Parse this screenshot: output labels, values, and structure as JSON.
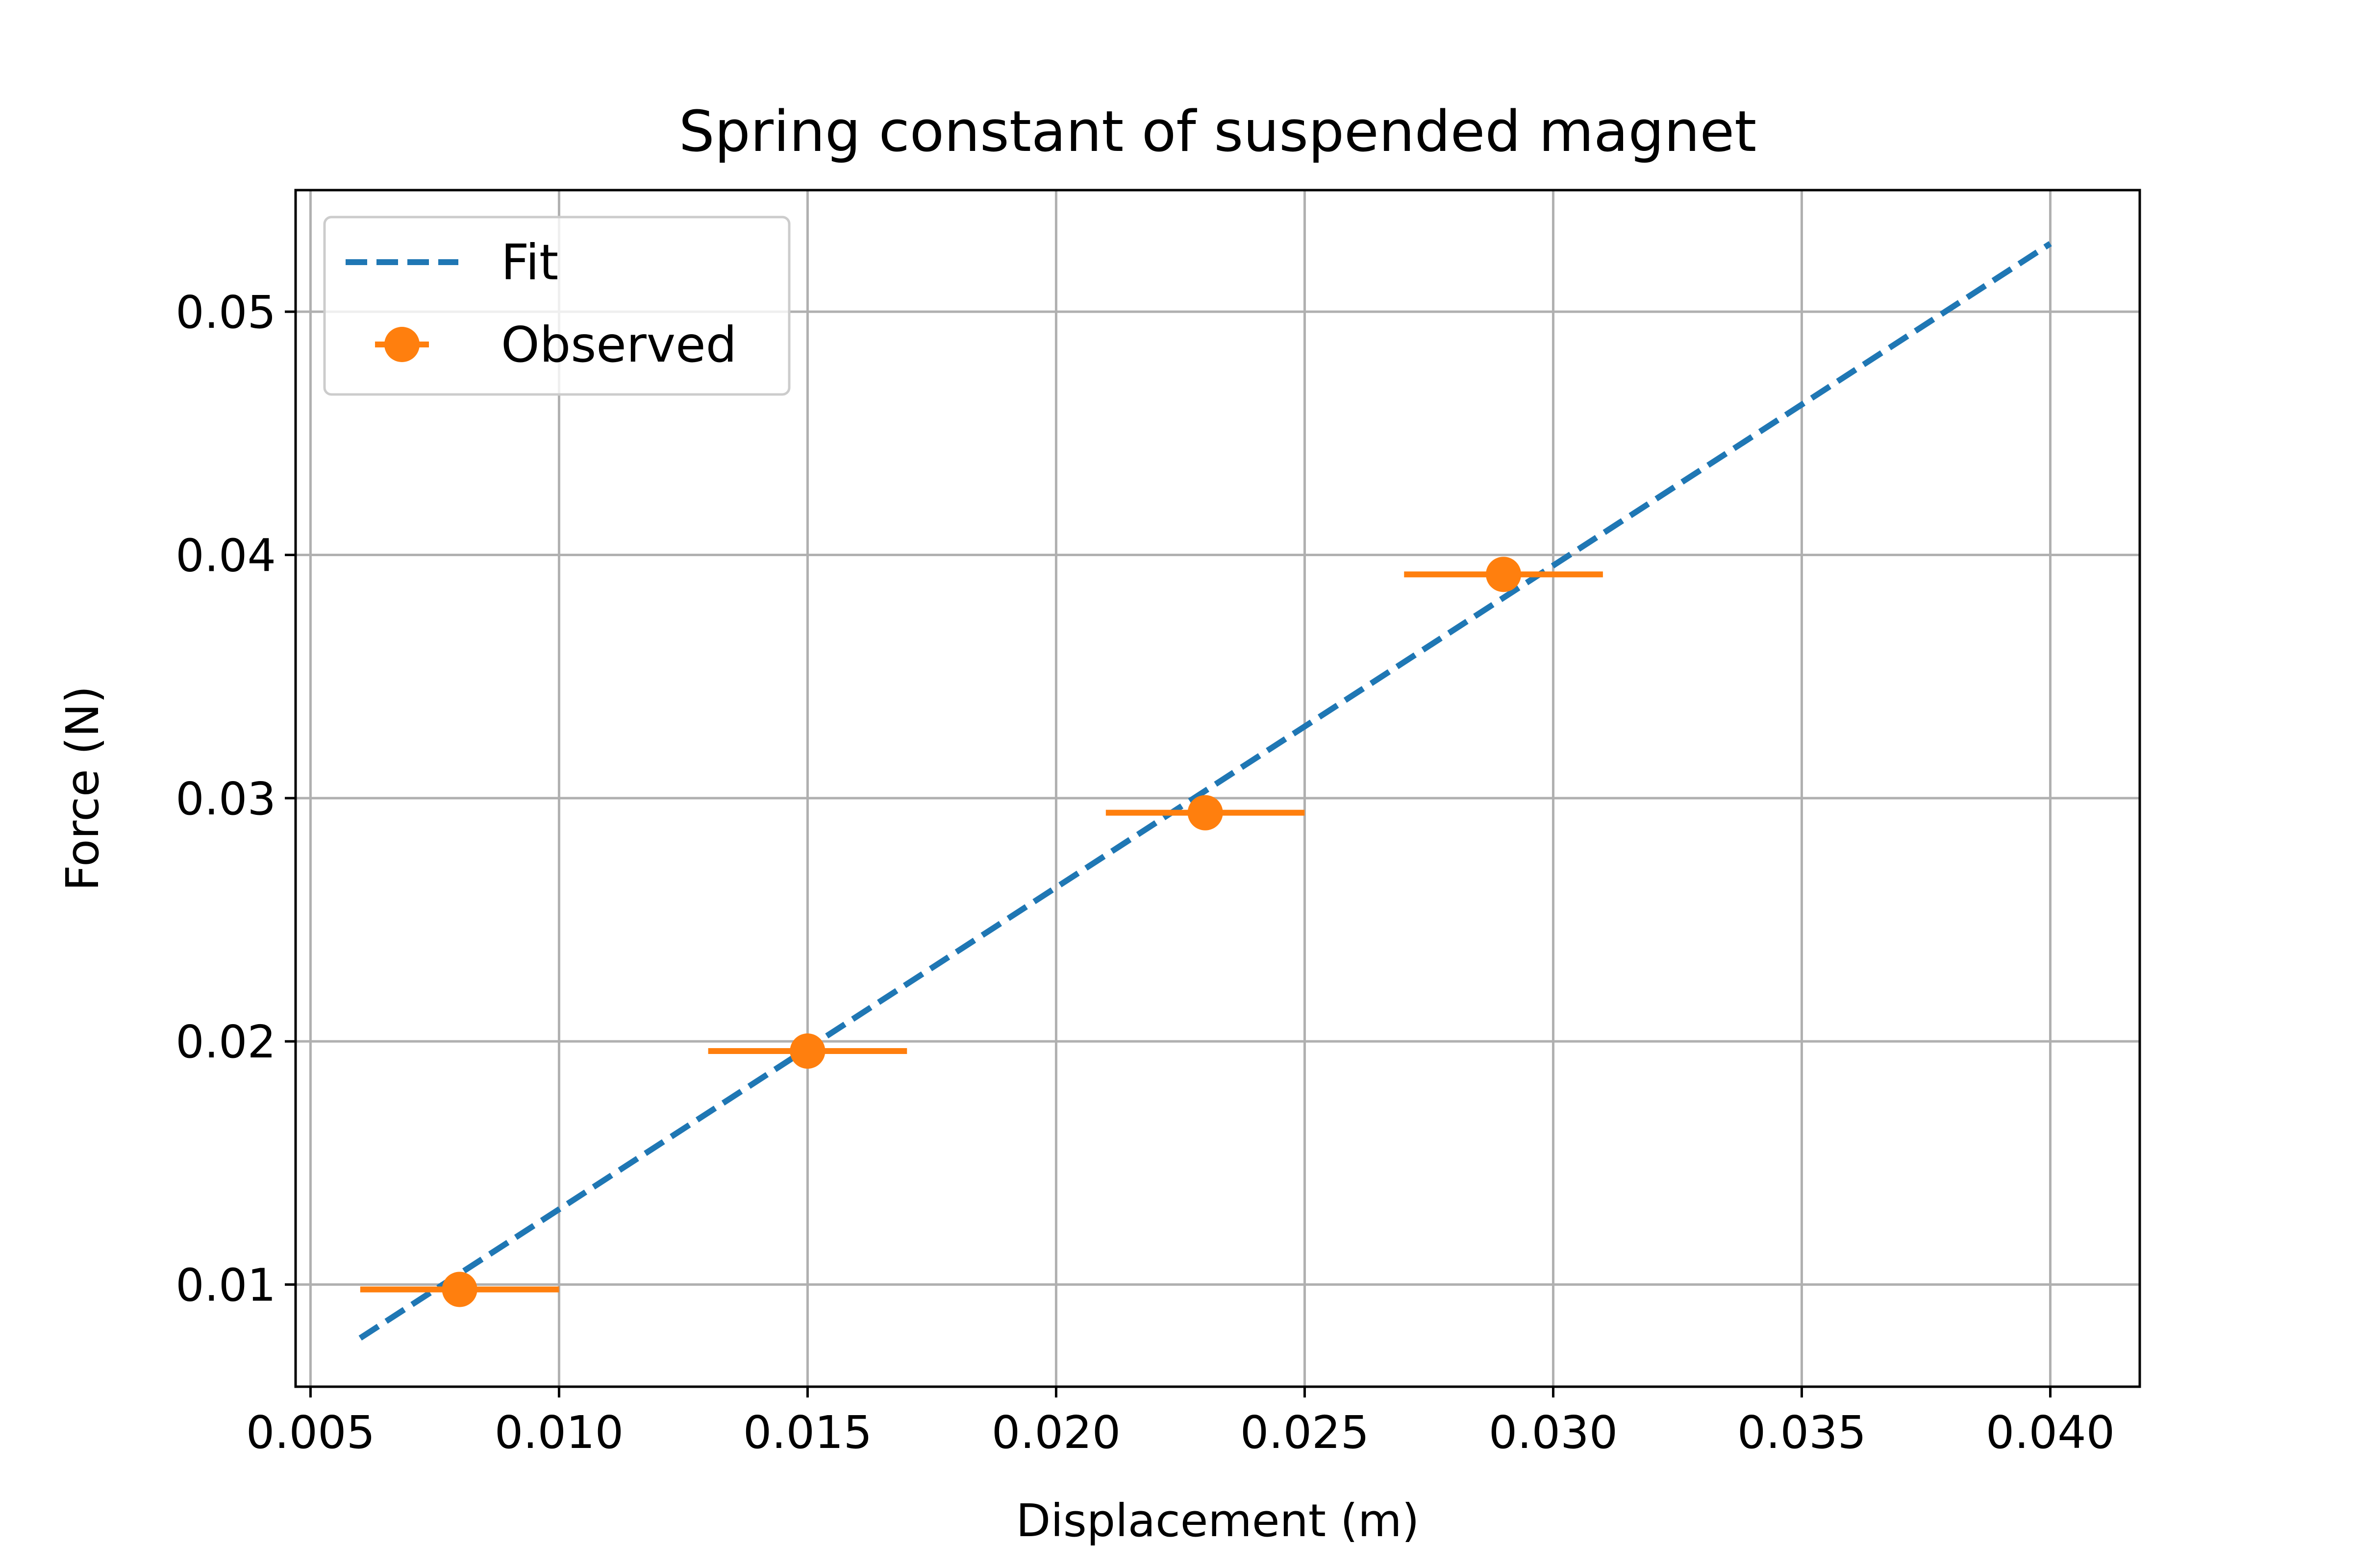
{
  "chart_data": {
    "type": "scatter",
    "title": "Spring constant of suspended magnet",
    "xlabel": "Displacement (m)",
    "ylabel": "Force (N)",
    "xlim": [
      0.0047,
      0.0418
    ],
    "ylim": [
      0.0058,
      0.055
    ],
    "xticks": [
      0.005,
      0.01,
      0.015,
      0.02,
      0.025,
      0.03,
      0.035,
      0.04
    ],
    "xtick_labels": [
      "0.005",
      "0.010",
      "0.015",
      "0.020",
      "0.025",
      "0.030",
      "0.035",
      "0.040"
    ],
    "yticks": [
      0.01,
      0.02,
      0.03,
      0.04,
      0.05
    ],
    "ytick_labels": [
      "0.01",
      "0.02",
      "0.03",
      "0.04",
      "0.05"
    ],
    "grid": true,
    "legend_position": "top-left",
    "series": [
      {
        "name": "Fit",
        "kind": "line",
        "style": "dashed",
        "color": "#1f77b4",
        "x": [
          0.006,
          0.04
        ],
        "y": [
          0.0078,
          0.0528
        ]
      },
      {
        "name": "Observed",
        "kind": "errorbar",
        "color": "#ff7f0e",
        "x": [
          0.008,
          0.015,
          0.023,
          0.029
        ],
        "y": [
          0.0098,
          0.0196,
          0.0294,
          0.0392
        ],
        "xerr": [
          0.002,
          0.002,
          0.002,
          0.002
        ]
      }
    ]
  }
}
